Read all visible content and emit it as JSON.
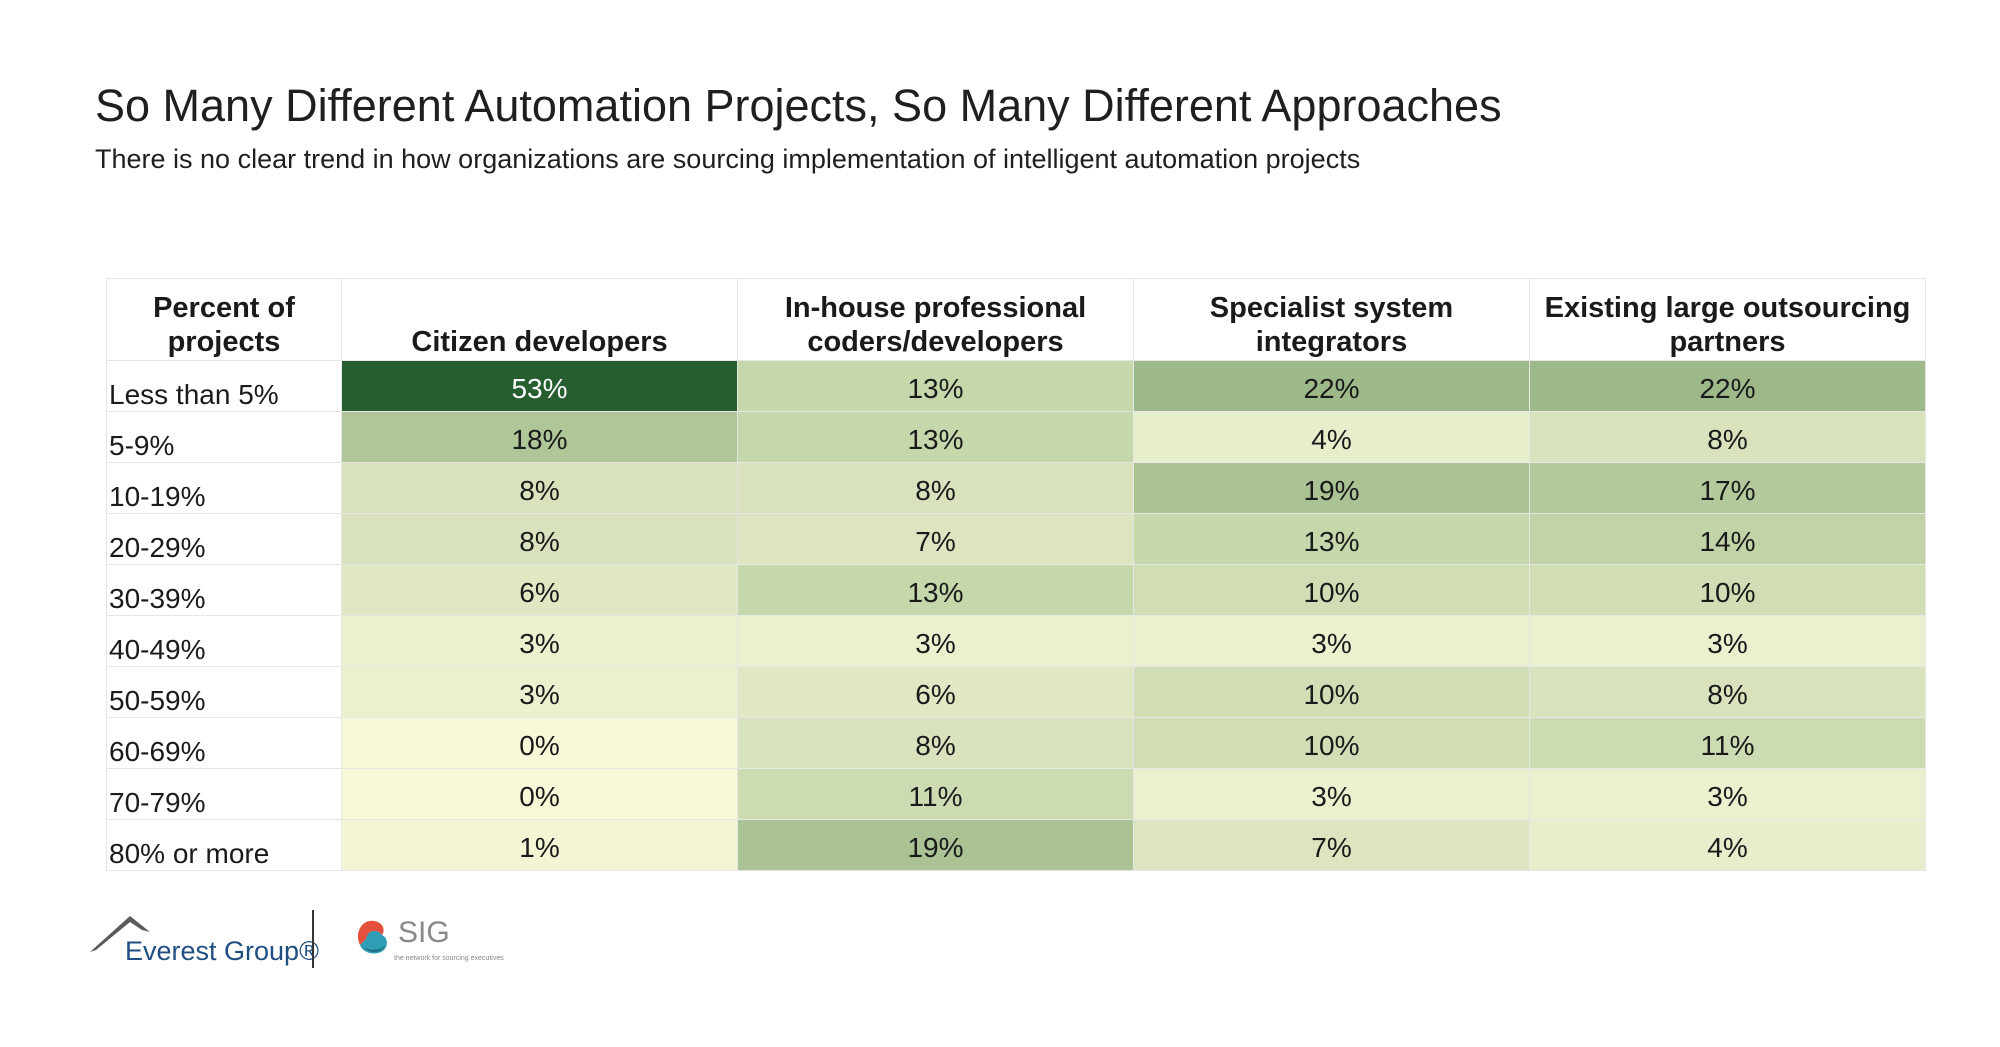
{
  "title": "So Many Different Automation Projects, So Many Different Approaches",
  "subtitle": "There is no clear trend in how organizations are sourcing implementation of intelligent automation projects",
  "chart_data": {
    "type": "heatmap",
    "row_header": "Percent of projects",
    "columns": [
      "Citizen developers",
      "In-house professional coders/developers",
      "Specialist system integrators",
      "Existing large outsourcing partners"
    ],
    "rows": [
      "Less than 5%",
      "5-9%",
      "10-19%",
      "20-29%",
      "30-39%",
      "40-49%",
      "50-59%",
      "60-69%",
      "70-79%",
      "80% or more"
    ],
    "values": [
      [
        53,
        13,
        22,
        22
      ],
      [
        18,
        13,
        4,
        8
      ],
      [
        8,
        8,
        19,
        17
      ],
      [
        8,
        7,
        13,
        14
      ],
      [
        6,
        13,
        10,
        10
      ],
      [
        3,
        3,
        3,
        3
      ],
      [
        3,
        6,
        10,
        8
      ],
      [
        0,
        8,
        10,
        11
      ],
      [
        0,
        11,
        3,
        3
      ],
      [
        1,
        19,
        7,
        4
      ]
    ],
    "value_suffix": "%",
    "color_scale": [
      "#f8f8d8",
      "#265e2f"
    ]
  },
  "footer": {
    "everest_logo": "Everest Group®",
    "sig_logo": "SIG",
    "sig_tagline": "the network for sourcing executives"
  }
}
